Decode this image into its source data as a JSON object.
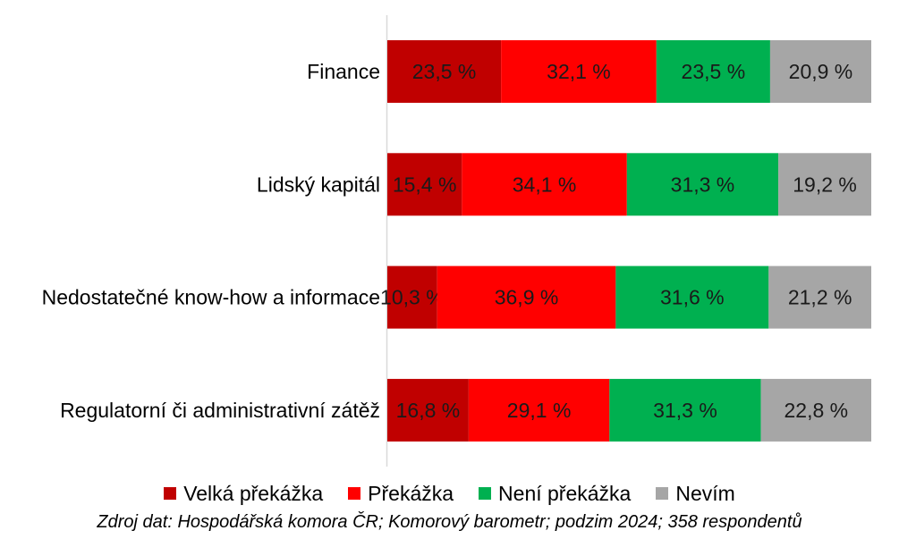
{
  "chart_data": {
    "type": "bar",
    "orientation": "horizontal",
    "stacked": true,
    "percent_stacked": true,
    "categories": [
      "Finance",
      "Lidský kapitál",
      "Nedostatečné know-how a informace",
      "Regulatorní či administrativní zátěž"
    ],
    "series": [
      {
        "name": "Velká překážka",
        "color": "#c00000",
        "values": [
          23.5,
          15.4,
          10.3,
          16.8
        ],
        "labels": [
          "23,5 %",
          "15,4 %",
          "10,3 %",
          "16,8 %"
        ]
      },
      {
        "name": "Překážka",
        "color": "#ff0000",
        "values": [
          32.1,
          34.1,
          36.9,
          29.1
        ],
        "labels": [
          "32,1 %",
          "34,1 %",
          "36,9 %",
          "29,1 %"
        ]
      },
      {
        "name": "Není překážka",
        "color": "#00b050",
        "values": [
          23.5,
          31.3,
          31.6,
          31.3
        ],
        "labels": [
          "23,5 %",
          "31,3 %",
          "31,6 %",
          "31,3 %"
        ]
      },
      {
        "name": "Nevím",
        "color": "#a6a6a6",
        "values": [
          20.9,
          19.2,
          21.2,
          22.8
        ],
        "labels": [
          "20,9 %",
          "19,2 %",
          "21,2 %",
          "22,8 %"
        ]
      }
    ],
    "xlim": [
      0,
      100
    ],
    "grid": false,
    "legend_position": "bottom"
  },
  "source_note": "Zdroj dat: Hospodářská komora ČR; Komorový barometr; podzim 2024; 358 respondentů"
}
